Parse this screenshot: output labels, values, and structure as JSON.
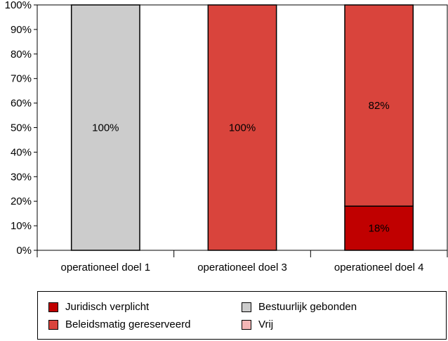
{
  "chart_data": {
    "type": "bar",
    "stacked": true,
    "categories": [
      "operationeel doel 1",
      "operationeel doel 3",
      "operationeel doel 4"
    ],
    "series": [
      {
        "name": "Juridisch verplicht",
        "color": "#c00000",
        "values": [
          0,
          0,
          18
        ],
        "labels": [
          "",
          "",
          "18%"
        ]
      },
      {
        "name": "Beleidsmatig gereserveerd",
        "color": "#d9443c",
        "values": [
          0,
          100,
          82
        ],
        "labels": [
          "",
          "100%",
          "82%"
        ]
      },
      {
        "name": "Bestuurlijk gebonden",
        "color": "#cccccc",
        "values": [
          100,
          0,
          0
        ],
        "labels": [
          "100%",
          "",
          ""
        ]
      },
      {
        "name": "Vrij",
        "color": "#f4b6b6",
        "values": [
          0,
          0,
          0
        ],
        "labels": [
          "",
          "",
          ""
        ]
      }
    ],
    "yticks": [
      "0%",
      "10%",
      "20%",
      "30%",
      "40%",
      "50%",
      "60%",
      "70%",
      "80%",
      "90%",
      "100%"
    ],
    "ylim": [
      0,
      100
    ],
    "grid": false,
    "legend": {
      "placement": "bottom",
      "order": [
        "Juridisch verplicht",
        "Bestuurlijk gebonden",
        "Beleidsmatig gereserveerd",
        "Vrij"
      ]
    }
  }
}
